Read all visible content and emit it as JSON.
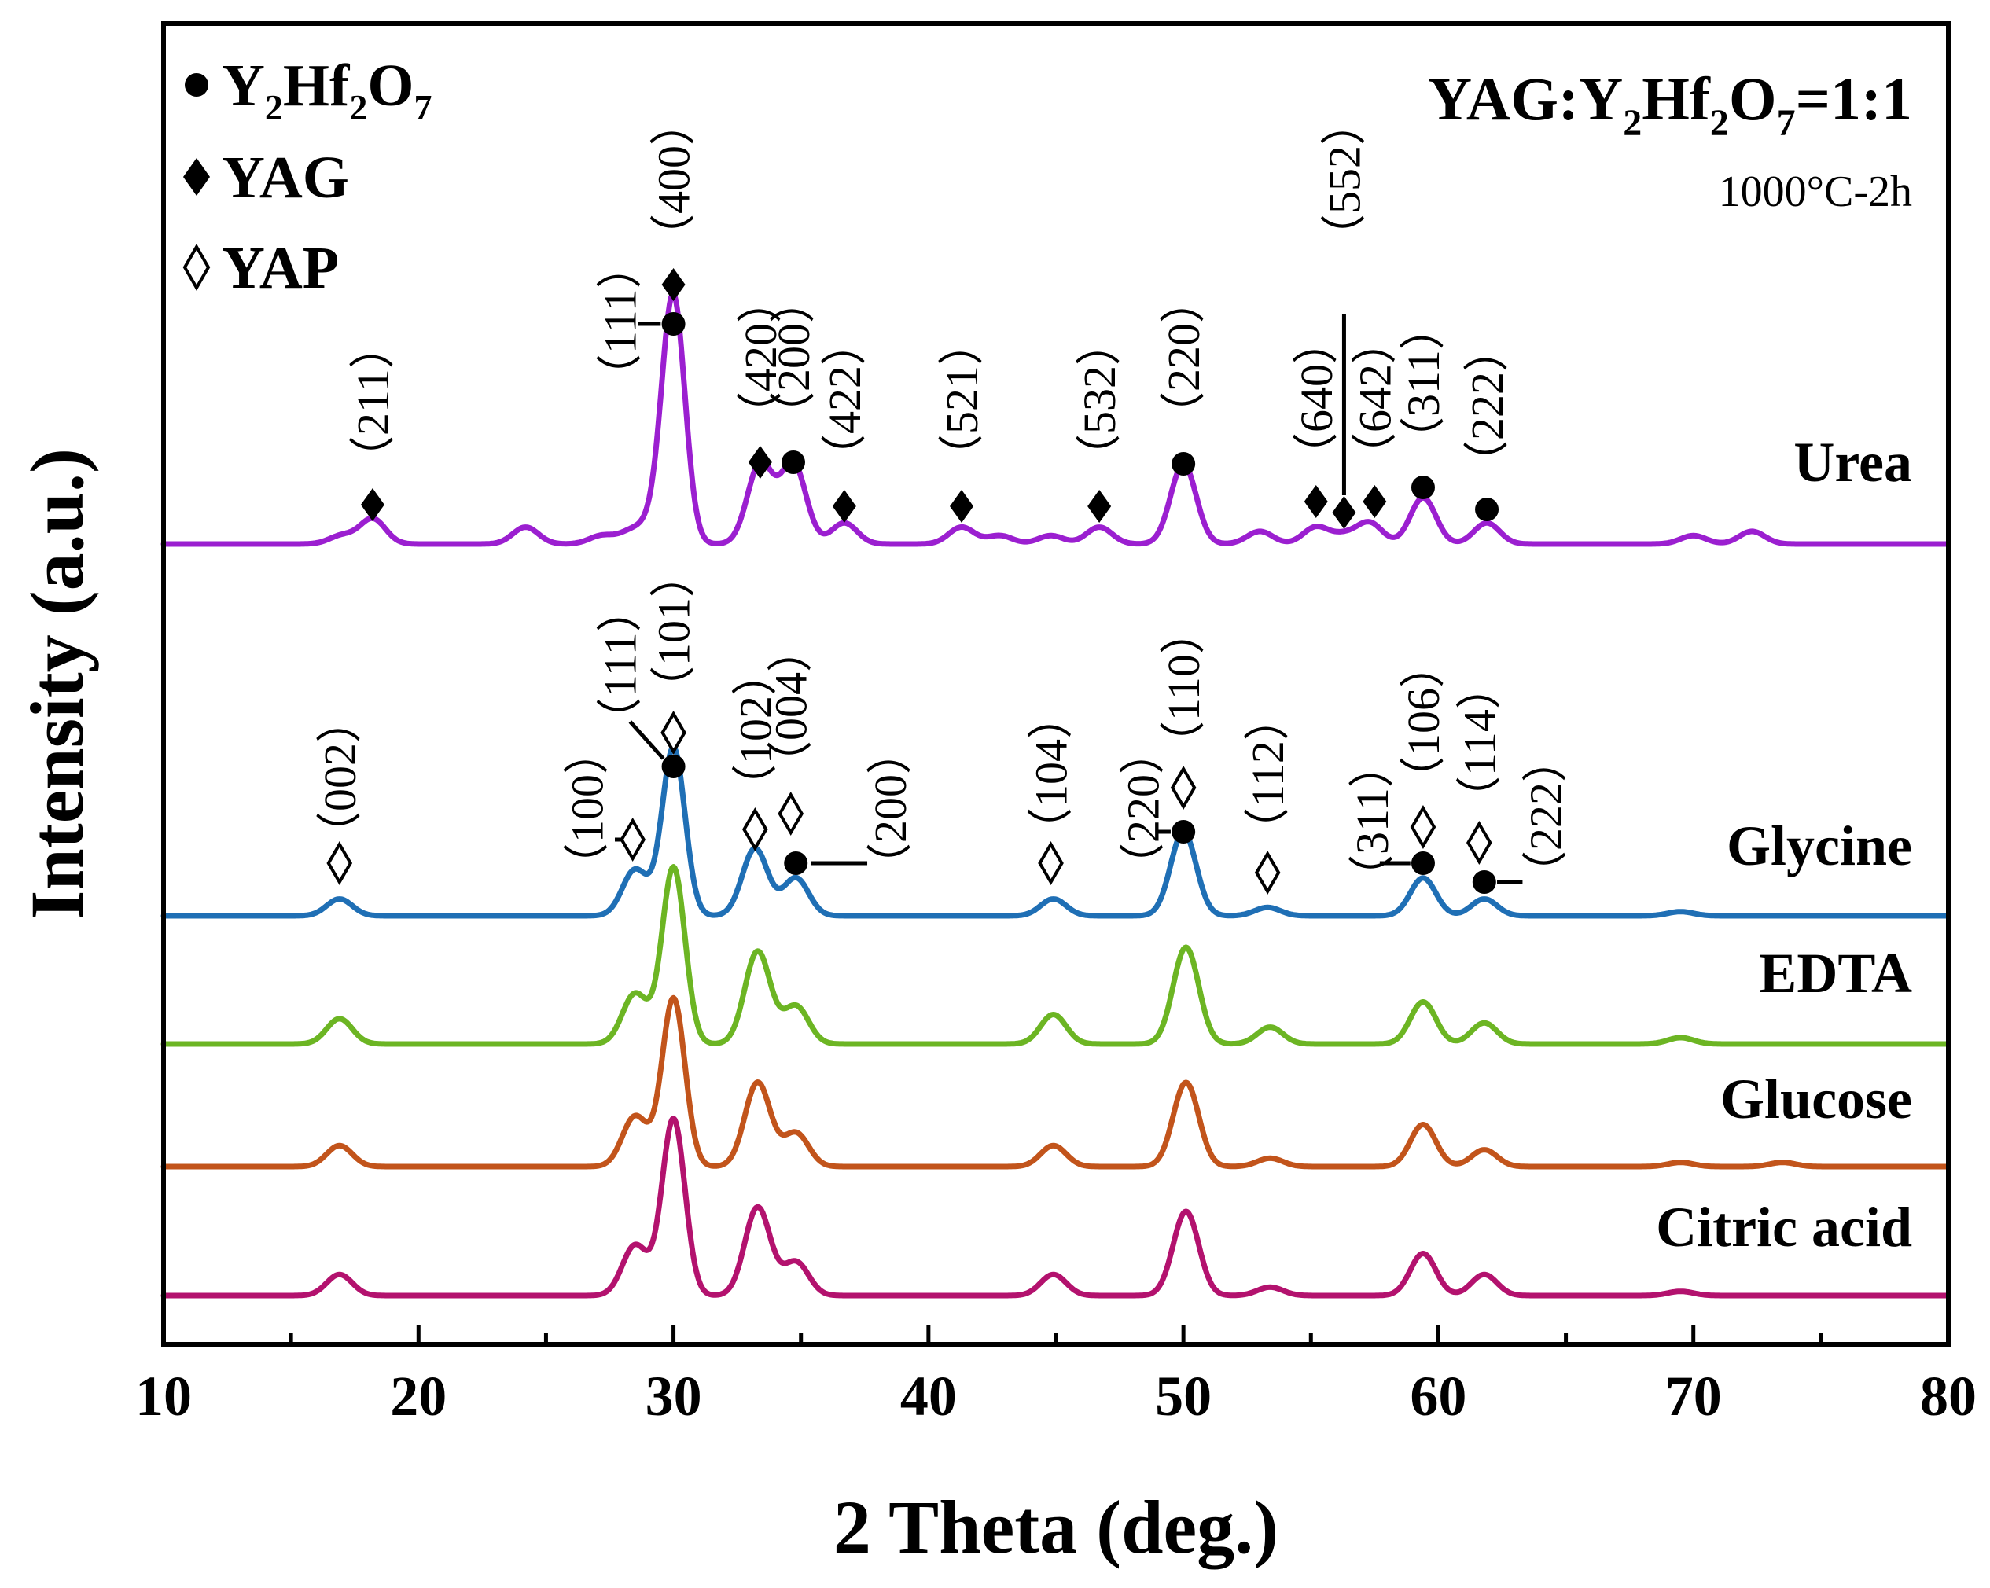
{
  "chart_data": {
    "type": "line",
    "title": "YAG:Y2Hf2O7=1:1",
    "title_parts": [
      "YAG:Y",
      "2",
      "Hf",
      "2",
      "O",
      "7",
      "=1:1"
    ],
    "subtitle": "1000°C-2h",
    "xlabel": "2 Theta (deg.)",
    "ylabel": "Intensity (a.u.)",
    "xlim": [
      10,
      80
    ],
    "x_ticks": [
      "10",
      "20",
      "30",
      "40",
      "50",
      "60",
      "70",
      "80"
    ],
    "legend": [
      {
        "symbol": "filled-circle",
        "name": "Y2Hf2O7",
        "parts": [
          "Y",
          "2",
          "Hf",
          "2",
          "O",
          "7"
        ]
      },
      {
        "symbol": "filled-diamond",
        "name": "YAG"
      },
      {
        "symbol": "open-diamond",
        "name": "YAP"
      }
    ],
    "series": [
      {
        "name": "Urea",
        "color": "#9b1fd0",
        "baseline": 1.0,
        "scale": 1.0,
        "peaks": [
          [
            17.0,
            0.02
          ],
          [
            18.2,
            0.06
          ],
          [
            24.2,
            0.04
          ],
          [
            27.2,
            0.02
          ],
          [
            28.4,
            0.03
          ],
          [
            29.3,
            0.04
          ],
          [
            30.0,
            0.58
          ],
          [
            33.4,
            0.19
          ],
          [
            34.7,
            0.19
          ],
          [
            36.7,
            0.05
          ],
          [
            41.3,
            0.04
          ],
          [
            42.8,
            0.02
          ],
          [
            44.8,
            0.02
          ],
          [
            46.7,
            0.04
          ],
          [
            50.0,
            0.19
          ],
          [
            53.0,
            0.03
          ],
          [
            55.2,
            0.04
          ],
          [
            56.3,
            0.02
          ],
          [
            57.3,
            0.05
          ],
          [
            59.4,
            0.11
          ],
          [
            61.9,
            0.05
          ],
          [
            70.0,
            0.02
          ],
          [
            72.3,
            0.03
          ]
        ]
      },
      {
        "name": "Glycine",
        "color": "#1f6fb5",
        "baseline": 0.0,
        "scale": 1.0,
        "peaks": [
          [
            16.9,
            0.04
          ],
          [
            28.5,
            0.11
          ],
          [
            30.0,
            0.4
          ],
          [
            33.2,
            0.16
          ],
          [
            34.8,
            0.09
          ],
          [
            44.9,
            0.04
          ],
          [
            50.0,
            0.2
          ],
          [
            53.3,
            0.02
          ],
          [
            59.4,
            0.09
          ],
          [
            61.8,
            0.04
          ],
          [
            69.5,
            0.01
          ]
        ]
      },
      {
        "name": "EDTA",
        "color": "#6cb523",
        "baseline": -0.37,
        "scale": 1.0,
        "peaks": [
          [
            16.9,
            0.06
          ],
          [
            28.5,
            0.12
          ],
          [
            30.0,
            0.42
          ],
          [
            33.3,
            0.22
          ],
          [
            34.8,
            0.09
          ],
          [
            44.9,
            0.07
          ],
          [
            50.1,
            0.23
          ],
          [
            53.4,
            0.04
          ],
          [
            59.4,
            0.1
          ],
          [
            61.8,
            0.05
          ],
          [
            69.5,
            0.015
          ]
        ]
      },
      {
        "name": "Glucose",
        "color": "#c2541b",
        "baseline": -0.73,
        "scale": 1.0,
        "peaks": [
          [
            16.9,
            0.05
          ],
          [
            28.5,
            0.12
          ],
          [
            30.0,
            0.4
          ],
          [
            33.3,
            0.2
          ],
          [
            34.8,
            0.08
          ],
          [
            44.9,
            0.05
          ],
          [
            50.1,
            0.2
          ],
          [
            53.4,
            0.02
          ],
          [
            59.4,
            0.1
          ],
          [
            61.8,
            0.04
          ],
          [
            69.5,
            0.01
          ],
          [
            73.5,
            0.01
          ]
        ]
      },
      {
        "name": "Citric acid",
        "color": "#b3126e",
        "baseline": -1.1,
        "scale": 1.0,
        "peaks": [
          [
            16.9,
            0.05
          ],
          [
            28.5,
            0.12
          ],
          [
            30.0,
            0.42
          ],
          [
            33.3,
            0.21
          ],
          [
            34.8,
            0.08
          ],
          [
            44.9,
            0.05
          ],
          [
            50.1,
            0.2
          ],
          [
            53.4,
            0.02
          ],
          [
            59.4,
            0.1
          ],
          [
            61.8,
            0.05
          ],
          [
            69.5,
            0.01
          ]
        ]
      }
    ],
    "annotations": {
      "urea": [
        {
          "x": 18.2,
          "marker": "filled-diamond",
          "label": "（211）"
        },
        {
          "x": 30.0,
          "marker": "filled-circle",
          "label": "（111）",
          "leader": "left"
        },
        {
          "x": 30.0,
          "marker": "filled-diamond",
          "label": "（400）"
        },
        {
          "x": 33.4,
          "marker": "filled-diamond",
          "label": "（420）"
        },
        {
          "x": 34.7,
          "marker": "filled-circle",
          "label": "（200）"
        },
        {
          "x": 36.7,
          "marker": "filled-diamond",
          "label": "（422）"
        },
        {
          "x": 41.3,
          "marker": "filled-diamond",
          "label": "（521）"
        },
        {
          "x": 46.7,
          "marker": "filled-diamond",
          "label": "（532）"
        },
        {
          "x": 50.0,
          "marker": "filled-circle",
          "label": "（220）"
        },
        {
          "x": 55.2,
          "marker": "filled-diamond",
          "label": "（640）"
        },
        {
          "x": 56.3,
          "marker": "filled-diamond",
          "label": "（552）",
          "leader": "vertical"
        },
        {
          "x": 57.5,
          "marker": "filled-diamond",
          "label": "（642）"
        },
        {
          "x": 59.4,
          "marker": "filled-circle",
          "label": "（311）"
        },
        {
          "x": 61.9,
          "marker": "filled-circle",
          "label": "（222）"
        }
      ],
      "glycine": [
        {
          "x": 16.9,
          "marker": "open-diamond",
          "label": "（002）"
        },
        {
          "x": 28.4,
          "marker": "open-diamond",
          "label": "（100）",
          "leader": "left"
        },
        {
          "x": 30.0,
          "marker": "filled-circle",
          "label": "（111）",
          "leader": "diag"
        },
        {
          "x": 30.0,
          "marker": "open-diamond",
          "label": "（101）"
        },
        {
          "x": 33.2,
          "marker": "open-diamond",
          "label": "（102）"
        },
        {
          "x": 34.6,
          "marker": "open-diamond",
          "label": "（004）"
        },
        {
          "x": 34.8,
          "marker": "filled-circle",
          "label": "（200）",
          "leader": "right"
        },
        {
          "x": 44.8,
          "marker": "open-diamond",
          "label": "（104）"
        },
        {
          "x": 50.0,
          "marker": "filled-circle",
          "label": "（220）",
          "leader": "left"
        },
        {
          "x": 50.0,
          "marker": "open-diamond",
          "label": "（110）"
        },
        {
          "x": 53.3,
          "marker": "open-diamond",
          "label": "（112）"
        },
        {
          "x": 59.4,
          "marker": "filled-circle",
          "label": "（311）",
          "leader": "left"
        },
        {
          "x": 59.4,
          "marker": "open-diamond",
          "label": "（106）"
        },
        {
          "x": 61.6,
          "marker": "open-diamond",
          "label": "（114）"
        },
        {
          "x": 61.8,
          "marker": "filled-circle",
          "label": "（222）",
          "leader": "right"
        }
      ]
    }
  }
}
